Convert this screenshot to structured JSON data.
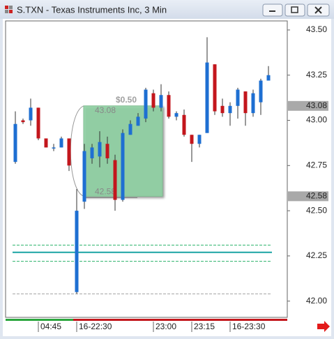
{
  "window_title": "S.TXN - Texas Instruments Inc, 3 Min",
  "chart_data": {
    "type": "candlestick",
    "categories": [
      null,
      null,
      null,
      "04:45",
      null,
      null,
      null,
      null,
      "16-22:30",
      null,
      null,
      null,
      null,
      null,
      null,
      null,
      null,
      null,
      "23:00",
      null,
      null,
      null,
      null,
      "23:15",
      null,
      null,
      null,
      null,
      "16-23:30",
      null,
      null,
      null,
      null,
      null
    ],
    "open": [
      42.77,
      43.0,
      43.0,
      43.07,
      42.9,
      42.85,
      42.85,
      42.9,
      42.05,
      42.55,
      42.79,
      42.8,
      42.87,
      42.78,
      42.56,
      42.92,
      42.97,
      43.01,
      43.15,
      43.07,
      43.14,
      43.02,
      43.03,
      42.92,
      42.87,
      42.93,
      43.31,
      43.08,
      43.04,
      43.08,
      43.16,
      43.04,
      43.1,
      43.22
    ],
    "high": [
      43.05,
      43.01,
      43.12,
      43.07,
      42.9,
      42.87,
      42.91,
      42.9,
      42.62,
      42.87,
      42.87,
      42.94,
      42.91,
      42.81,
      42.95,
      43.0,
      43.04,
      43.18,
      43.17,
      43.2,
      43.16,
      43.05,
      43.06,
      42.92,
      42.92,
      43.46,
      43.31,
      43.12,
      43.1,
      43.18,
      43.16,
      43.17,
      43.23,
      43.3
    ],
    "low": [
      42.76,
      42.98,
      42.97,
      42.89,
      42.85,
      42.83,
      42.85,
      42.72,
      42.04,
      42.51,
      42.76,
      42.74,
      42.76,
      42.5,
      42.55,
      42.92,
      42.97,
      42.99,
      43.05,
      43.05,
      43.01,
      43.0,
      42.91,
      42.77,
      42.85,
      42.93,
      43.03,
      43.02,
      42.97,
      43.01,
      42.97,
      43.02,
      43.03,
      43.22
    ],
    "close": [
      42.98,
      42.99,
      43.07,
      42.9,
      42.85,
      42.85,
      42.9,
      42.75,
      42.5,
      42.83,
      42.85,
      42.88,
      42.79,
      42.56,
      42.93,
      42.98,
      43.02,
      43.17,
      43.07,
      43.14,
      43.02,
      43.04,
      42.92,
      42.87,
      42.92,
      43.32,
      43.05,
      43.04,
      43.08,
      43.17,
      43.04,
      43.15,
      43.22,
      43.25
    ],
    "up_color": "#1e6fd2",
    "down_color": "#c3161c",
    "ylim": [
      41.91,
      43.55
    ],
    "yticks": [
      {
        "value": 42.0,
        "label": "42.00"
      },
      42.25,
      {
        "value": 42.5,
        "label": "42.50"
      },
      42.75,
      {
        "value": 43.0,
        "label": "43.00"
      },
      43.25,
      {
        "value": 43.5,
        "label": "43.50"
      }
    ],
    "range_box": {
      "label": "$0.50",
      "high": 43.08,
      "low": 42.58,
      "color": "#8fd4a4"
    },
    "price_markers": [
      43.08,
      42.58
    ],
    "levels": [
      {
        "value": 42.31,
        "color": "#2db36b",
        "dashed": true
      },
      {
        "value": 42.27,
        "color": "#1aa3a3",
        "dashed": false
      },
      {
        "value": 42.22,
        "color": "#2db36b",
        "dashed": true
      },
      {
        "value": 42.04,
        "color": "#a0a0a0",
        "dashed": true
      }
    ]
  }
}
